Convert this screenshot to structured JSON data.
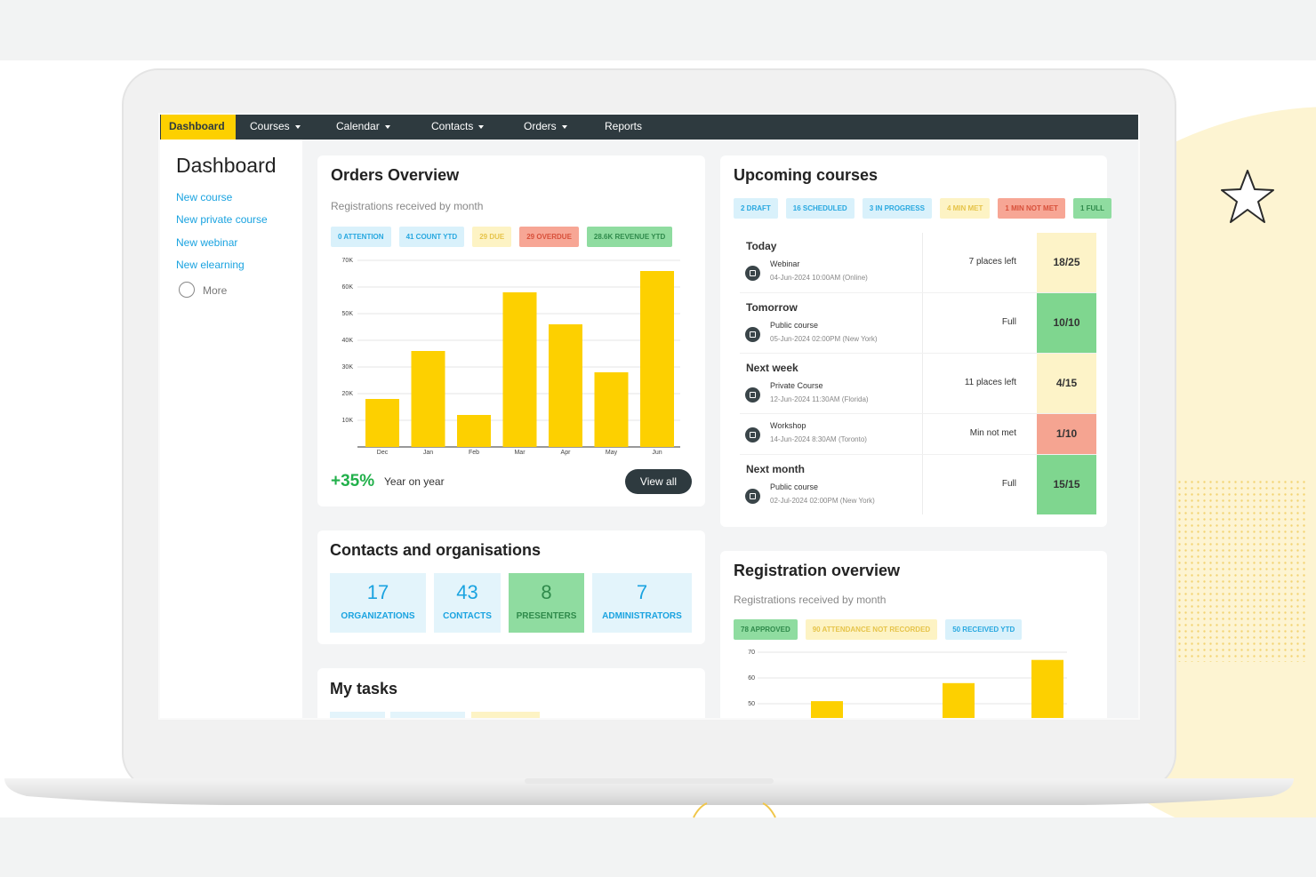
{
  "nav": {
    "items": [
      "Dashboard",
      "Courses",
      "Calendar",
      "Contacts",
      "Orders",
      "Reports"
    ]
  },
  "sidebar": {
    "title": "Dashboard",
    "links": [
      "New course",
      "New private course",
      "New webinar",
      "New elearning"
    ],
    "more": "More"
  },
  "orders_overview": {
    "title": "Orders Overview",
    "subtitle": "Registrations received by month",
    "badges": [
      "0 ATTENTION",
      "41 COUNT YTD",
      "29 DUE",
      "29 OVERDUE",
      "28.6K REVENUE YTD"
    ],
    "chart": {
      "type": "bar",
      "categories": [
        "Dec",
        "Jan",
        "Feb",
        "Mar",
        "Apr",
        "May",
        "Jun"
      ],
      "values": [
        18000,
        36000,
        12000,
        58000,
        46000,
        28000,
        66000
      ],
      "color": "#fdd000",
      "ylim": [
        0,
        70000
      ],
      "yticks": [
        {
          "value": 10000,
          "label": "10K"
        },
        {
          "value": 20000,
          "label": "20K"
        },
        {
          "value": 30000,
          "label": "30K"
        },
        {
          "value": 40000,
          "label": "40K"
        },
        {
          "value": 50000,
          "label": "50K"
        },
        {
          "value": 60000,
          "label": "60K"
        },
        {
          "value": 70000,
          "label": "70K"
        }
      ],
      "grid": true
    },
    "change": "+35%",
    "change_label": "Year on year",
    "button": "View all"
  },
  "contacts": {
    "title": "Contacts and organisations",
    "tiles": [
      {
        "value": 17,
        "label": "ORGANIZATIONS"
      },
      {
        "value": 43,
        "label": "CONTACTS"
      },
      {
        "value": 8,
        "label": "PRESENTERS"
      },
      {
        "value": 7,
        "label": "ADMINISTRATORS"
      }
    ]
  },
  "tasks": {
    "title": "My tasks"
  },
  "upcoming": {
    "title": "Upcoming courses",
    "badges": [
      "2 DRAFT",
      "16 SCHEDULED",
      "3 IN PROGRESS",
      "4 MIN MET",
      "1 MIN NOT MET",
      "1 FULL"
    ],
    "groups": [
      {
        "label": "Today",
        "items": [
          {
            "type": "Webinar",
            "date": "04-Jun-2024 10:00AM (Online)",
            "status": "7 places left",
            "capacity": "18/25"
          }
        ]
      },
      {
        "label": "Tomorrow",
        "items": [
          {
            "type": "Public course",
            "date": "05-Jun-2024 02:00PM (New York)",
            "status": "Full",
            "capacity": "10/10"
          }
        ]
      },
      {
        "label": "Next week",
        "items": [
          {
            "type": "Private Course",
            "date": "12-Jun-2024 11:30AM (Florida)",
            "status": "11 places left",
            "capacity": "4/15"
          },
          {
            "type": "Workshop",
            "date": "14-Jun-2024 8:30AM (Toronto)",
            "status": "Min not met",
            "capacity": "1/10"
          }
        ]
      },
      {
        "label": "Next month",
        "items": [
          {
            "type": "Public course",
            "date": "02-Jul-2024 02:00PM (New York)",
            "status": "Full",
            "capacity": "15/15"
          }
        ]
      }
    ]
  },
  "registration": {
    "title": "Registration overview",
    "subtitle": "Registrations received by month",
    "badges": [
      "78 APPROVED",
      "90 ATTENDANCE NOT RECORDED",
      "50 RECEIVED YTD"
    ],
    "chart": {
      "type": "bar",
      "categories": [
        null,
        null,
        null
      ],
      "values": [
        51,
        58,
        67
      ],
      "color": "#fdd000",
      "ylim": [
        0,
        70
      ],
      "yticks": [
        50,
        60,
        70
      ],
      "grid": true
    }
  }
}
